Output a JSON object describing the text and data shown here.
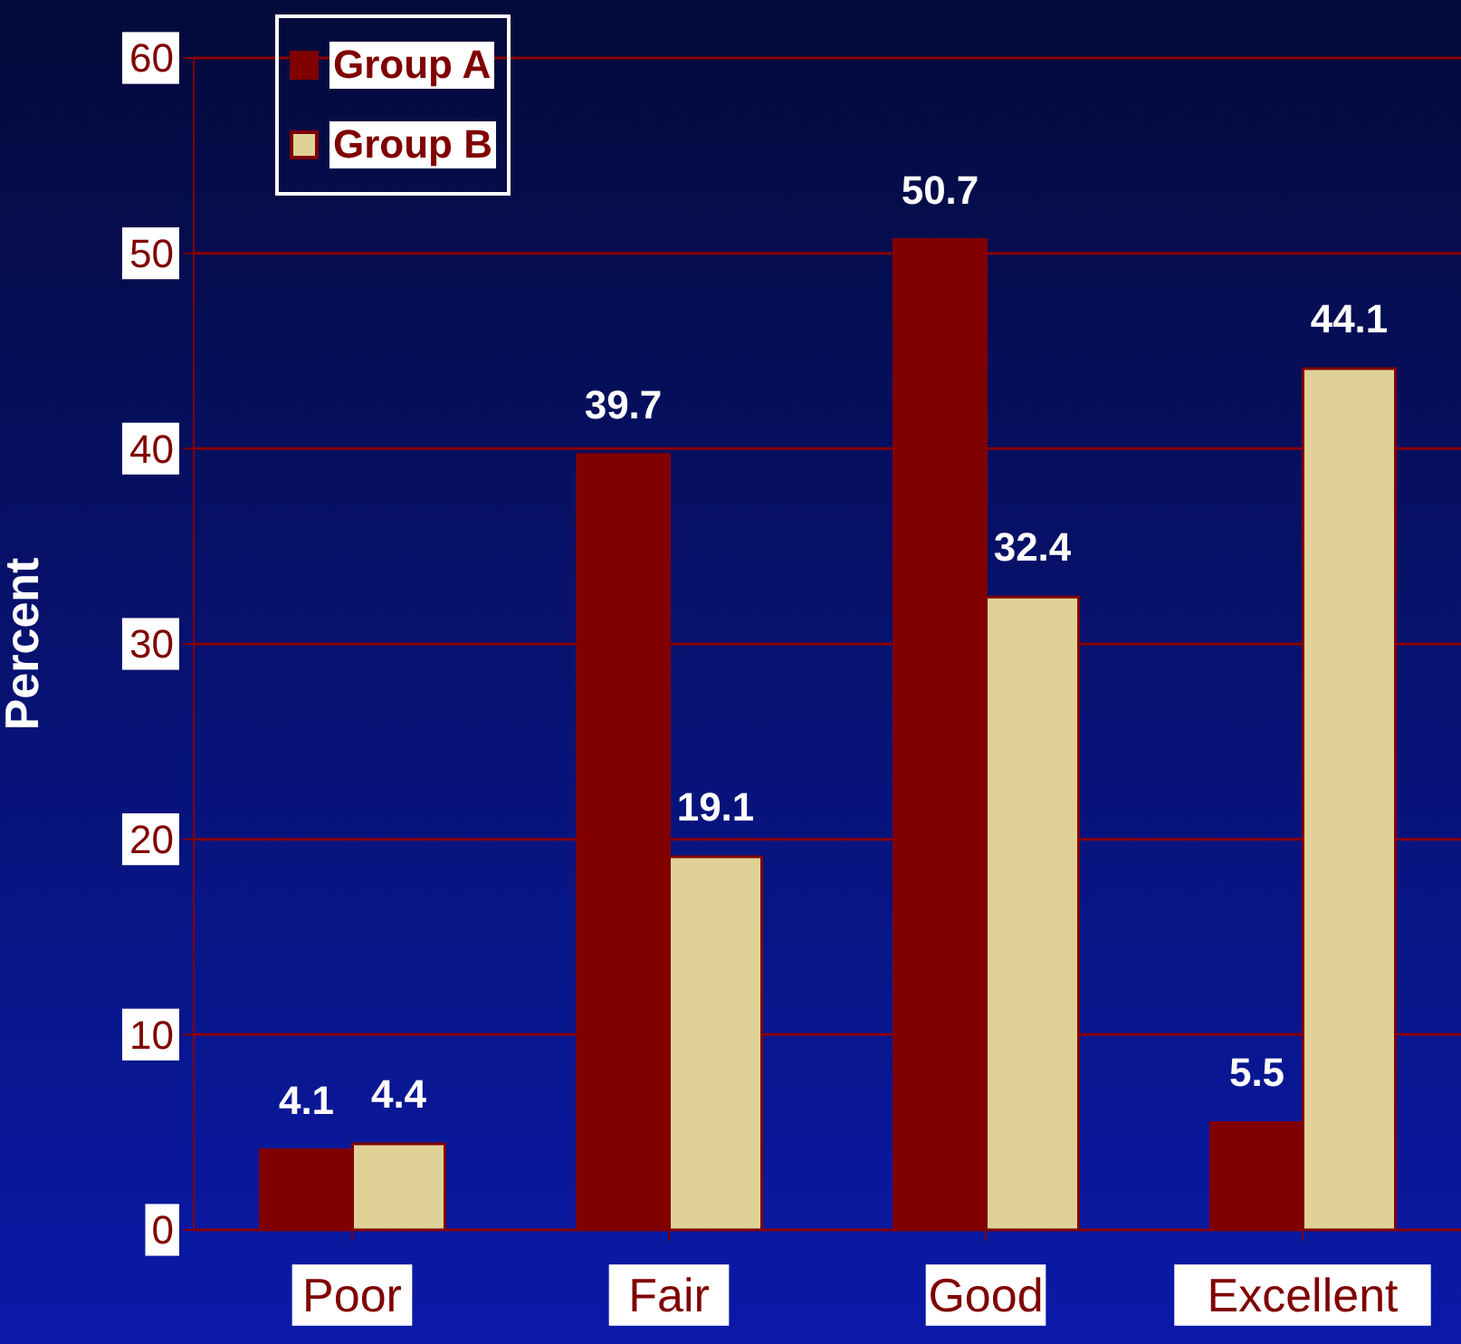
{
  "chart_data": {
    "type": "bar",
    "ylabel": "Percent",
    "categories": [
      "Poor",
      "Fair",
      "Good",
      "Excellent"
    ],
    "series": [
      {
        "name": "Group A",
        "color": "#800000",
        "values": [
          4.1,
          39.7,
          50.7,
          5.5
        ]
      },
      {
        "name": "Group B",
        "color": "#e0d296",
        "values": [
          4.4,
          19.1,
          32.4,
          44.1
        ]
      }
    ],
    "ylim": [
      0,
      60
    ],
    "yticks": [
      0,
      10,
      20,
      30,
      40,
      50,
      60
    ],
    "grid": "y",
    "legend": "top left",
    "data_labels": true
  }
}
